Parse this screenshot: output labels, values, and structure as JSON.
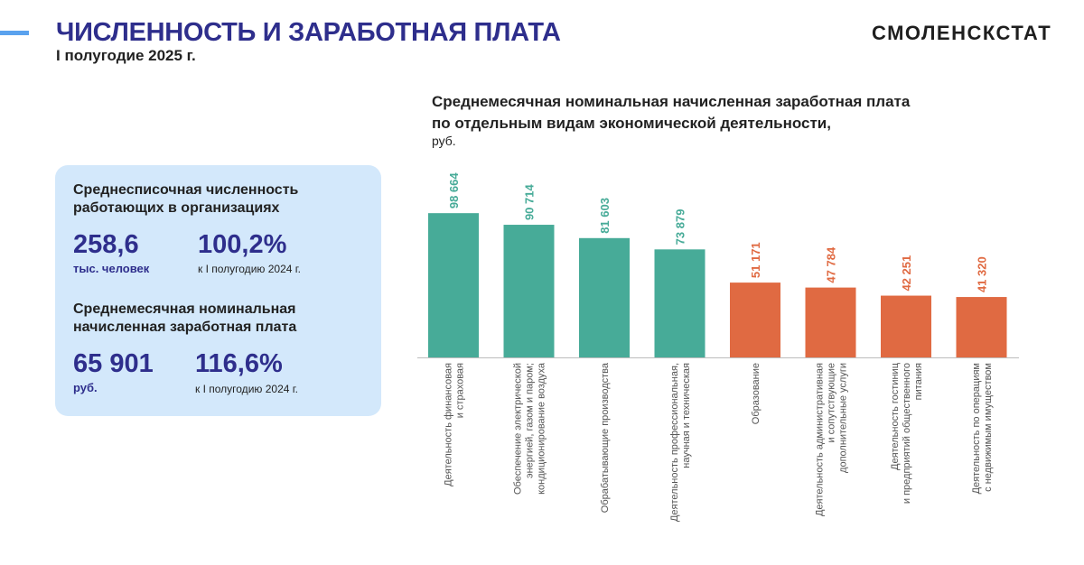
{
  "header": {
    "title": "ЧИСЛЕННОСТЬ И ЗАРАБОТНАЯ ПЛАТА",
    "subtitle": "I полугодие 2025 г.",
    "logo": "СМОЛЕНСКСТАТ"
  },
  "stats": {
    "employees": {
      "heading": [
        "Среднесписочная численность",
        "работающих в организациях"
      ],
      "value": "258,6",
      "unit": "тыс. человек",
      "percent": "100,2%",
      "comparison": "к I полугодию 2024 г."
    },
    "salary": {
      "heading": [
        "Среднемесячная номинальная",
        "начисленная заработная плата"
      ],
      "value": "65 901",
      "unit": "руб.",
      "percent": "116,6%",
      "comparison": "к I полугодию 2024 г."
    }
  },
  "colors": {
    "title": "#2e2e8c",
    "card_bg": "#d3e8fb",
    "bar_high": "#47ab98",
    "bar_low": "#e06a42",
    "label_high": "#47ab98",
    "label_low": "#e06a42"
  },
  "chart_data": {
    "type": "bar",
    "title": [
      "Среднемесячная номинальная начисленная заработная плата",
      "по отдельным видам экономической деятельности,"
    ],
    "unit": "руб.",
    "ylim": [
      0,
      100000
    ],
    "bars": [
      {
        "value": 98664,
        "label": "98 664",
        "group": "high",
        "category": [
          "Деятельность финансовая",
          "и страховая"
        ]
      },
      {
        "value": 90714,
        "label": "90 714",
        "group": "high",
        "category": [
          "Обеспечение электрической",
          "энергией, газом и паром;",
          "кондиционирование воздуха"
        ]
      },
      {
        "value": 81603,
        "label": "81 603",
        "group": "high",
        "category": [
          "Обрабатывающие производства"
        ]
      },
      {
        "value": 73879,
        "label": "73 879",
        "group": "high",
        "category": [
          "Деятельность профессиональная,",
          "научная и техническая"
        ]
      },
      {
        "value": 51171,
        "label": "51 171",
        "group": "low",
        "category": [
          "Образование"
        ]
      },
      {
        "value": 47784,
        "label": "47 784",
        "group": "low",
        "category": [
          "Деятельность административная",
          "и сопутствующие",
          "дополнительные услуги"
        ]
      },
      {
        "value": 42251,
        "label": "42 251",
        "group": "low",
        "category": [
          "Деятельность гостиниц",
          "и предприятий общественного",
          "питания"
        ]
      },
      {
        "value": 41320,
        "label": "41 320",
        "group": "low",
        "category": [
          "Деятельность по операциям",
          "с недвижимым имуществом"
        ]
      }
    ]
  }
}
